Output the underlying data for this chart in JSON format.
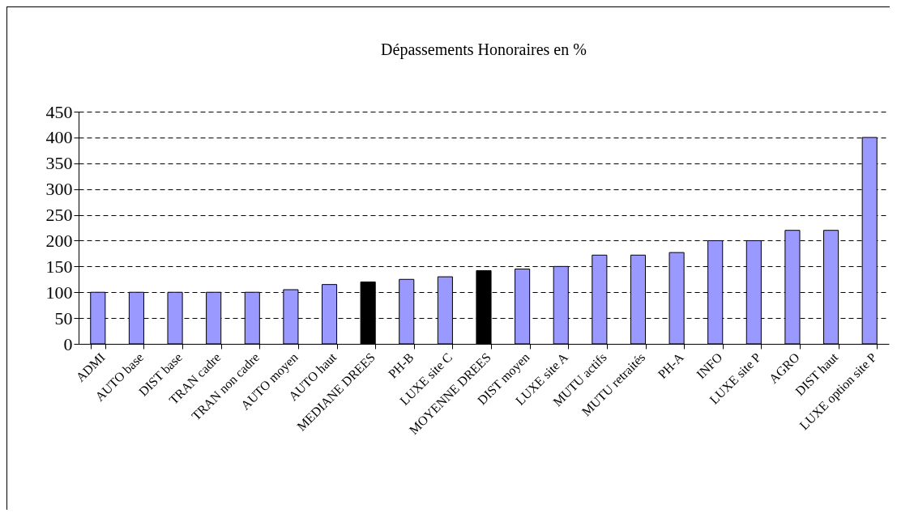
{
  "chart_data": {
    "type": "bar",
    "title": "Dépassements Honoraires en %",
    "categories": [
      "ADMI",
      "AUTO base",
      "DIST base",
      "TRAN cadre",
      "TRAN non cadre",
      "AUTO moyen",
      "AUTO haut",
      "MEDIANE DREES",
      "PH-B",
      "LUXE site C",
      "MOYENNE DREES",
      "DIST moyen",
      "LUXE site A",
      "MUTU actifs",
      "MUTU retraités",
      "PH-A",
      "INFO",
      "LUXE site P",
      "AGRO",
      "DIST haut",
      "LUXE option site P"
    ],
    "values": [
      100,
      100,
      100,
      100,
      100,
      105,
      115,
      120,
      125,
      130,
      142,
      145,
      150,
      172,
      172,
      177,
      200,
      200,
      220,
      220,
      400
    ],
    "colors": [
      "#9999ff",
      "#9999ff",
      "#9999ff",
      "#9999ff",
      "#9999ff",
      "#9999ff",
      "#9999ff",
      "#000000",
      "#9999ff",
      "#9999ff",
      "#000000",
      "#9999ff",
      "#9999ff",
      "#9999ff",
      "#9999ff",
      "#9999ff",
      "#9999ff",
      "#9999ff",
      "#9999ff",
      "#9999ff",
      "#9999ff"
    ],
    "ylim": [
      0,
      450
    ],
    "yticks": [
      0,
      50,
      100,
      150,
      200,
      250,
      300,
      350,
      400,
      450
    ],
    "grid": "y"
  }
}
